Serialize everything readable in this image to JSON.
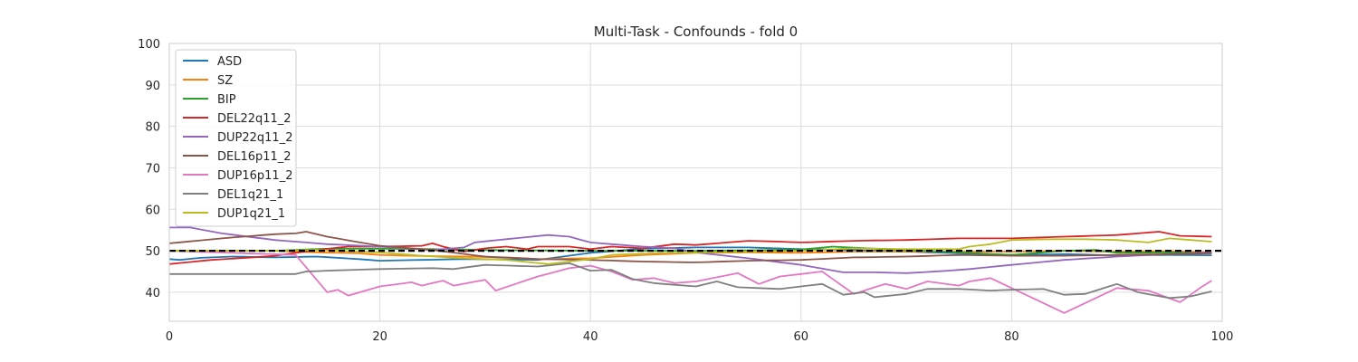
{
  "chart_data": {
    "type": "line",
    "title": "Multi-Task - Confounds - fold 0",
    "xlabel": "",
    "ylabel": "",
    "xlim": [
      0,
      100
    ],
    "ylim": [
      33,
      100
    ],
    "xticks": [
      0,
      20,
      40,
      60,
      80,
      100
    ],
    "yticks": [
      40,
      50,
      60,
      70,
      80,
      90,
      100
    ],
    "grid": true,
    "legend_position": "top-left",
    "reference_line": {
      "y": 50,
      "style": "dashed",
      "color": "#000000"
    },
    "x_step": 1,
    "series": [
      {
        "name": "ASD",
        "color": "#1f77b4",
        "keypoints": [
          [
            0,
            48
          ],
          [
            1,
            47.8
          ],
          [
            3,
            48.3
          ],
          [
            6,
            48.6
          ],
          [
            10,
            48.4
          ],
          [
            14,
            48.6
          ],
          [
            18,
            48
          ],
          [
            20,
            47.6
          ],
          [
            24,
            47.8
          ],
          [
            28,
            48
          ],
          [
            32,
            47.9
          ],
          [
            35,
            47.8
          ],
          [
            40,
            49.5
          ],
          [
            45,
            50.5
          ],
          [
            50,
            50.8
          ],
          [
            55,
            50.8
          ],
          [
            60,
            50.4
          ],
          [
            65,
            50.2
          ],
          [
            70,
            49.8
          ],
          [
            75,
            49.4
          ],
          [
            80,
            49
          ],
          [
            85,
            49.2
          ],
          [
            90,
            48.9
          ],
          [
            95,
            49
          ],
          [
            99,
            48.9
          ]
        ]
      },
      {
        "name": "SZ",
        "color": "#ff7f0e",
        "keypoints": [
          [
            0,
            50
          ],
          [
            10,
            50
          ],
          [
            14,
            49.6
          ],
          [
            18,
            49.4
          ],
          [
            20,
            49
          ],
          [
            23,
            48.8
          ],
          [
            28,
            48.6
          ],
          [
            32,
            48.4
          ],
          [
            35,
            48
          ],
          [
            40,
            48.2
          ],
          [
            45,
            49
          ],
          [
            50,
            49.5
          ],
          [
            55,
            49.6
          ],
          [
            60,
            49.5
          ],
          [
            65,
            49.8
          ],
          [
            70,
            49.8
          ],
          [
            75,
            49.8
          ],
          [
            80,
            49.8
          ],
          [
            85,
            50
          ],
          [
            90,
            49.8
          ],
          [
            95,
            49.9
          ],
          [
            99,
            49.6
          ]
        ]
      },
      {
        "name": "BIP",
        "color": "#2ca02c",
        "keypoints": [
          [
            0,
            50
          ],
          [
            10,
            50
          ],
          [
            15,
            50.5
          ],
          [
            20,
            50.5
          ],
          [
            25,
            50.4
          ],
          [
            30,
            50.2
          ],
          [
            35,
            50.1
          ],
          [
            40,
            50
          ],
          [
            45,
            50
          ],
          [
            50,
            50
          ],
          [
            55,
            50.1
          ],
          [
            60,
            50.3
          ],
          [
            63,
            51
          ],
          [
            67,
            50.5
          ],
          [
            70,
            50.2
          ],
          [
            75,
            49.6
          ],
          [
            80,
            49
          ],
          [
            85,
            50
          ],
          [
            88,
            50.2
          ],
          [
            90,
            49.5
          ],
          [
            95,
            49.6
          ],
          [
            99,
            49.4
          ]
        ]
      },
      {
        "name": "DEL22q11_2",
        "color": "#d62728",
        "keypoints": [
          [
            0,
            46.8
          ],
          [
            4,
            47.8
          ],
          [
            8,
            48.4
          ],
          [
            10,
            48.8
          ],
          [
            14,
            50.2
          ],
          [
            17,
            51
          ],
          [
            20,
            51
          ],
          [
            24,
            51.2
          ],
          [
            25,
            51.8
          ],
          [
            26,
            51
          ],
          [
            28,
            49.8
          ],
          [
            30,
            50.6
          ],
          [
            32,
            51
          ],
          [
            34,
            50.4
          ],
          [
            35,
            51
          ],
          [
            38,
            51
          ],
          [
            40,
            50.4
          ],
          [
            42,
            51
          ],
          [
            45,
            50.6
          ],
          [
            48,
            51.6
          ],
          [
            50,
            51.4
          ],
          [
            52,
            51.8
          ],
          [
            55,
            52.4
          ],
          [
            58,
            52.2
          ],
          [
            60,
            52
          ],
          [
            65,
            52.4
          ],
          [
            70,
            52.6
          ],
          [
            75,
            53
          ],
          [
            80,
            53
          ],
          [
            85,
            53.4
          ],
          [
            90,
            53.8
          ],
          [
            94,
            54.6
          ],
          [
            96,
            53.6
          ],
          [
            99,
            53.4
          ]
        ]
      },
      {
        "name": "DUP22q11_2",
        "color": "#9467bd",
        "keypoints": [
          [
            0,
            55.6
          ],
          [
            2,
            55.6
          ],
          [
            5,
            54.2
          ],
          [
            10,
            52.6
          ],
          [
            15,
            51.6
          ],
          [
            20,
            51
          ],
          [
            25,
            50.2
          ],
          [
            28,
            50.8
          ],
          [
            29,
            52
          ],
          [
            32,
            52.8
          ],
          [
            36,
            53.8
          ],
          [
            38,
            53.4
          ],
          [
            40,
            52
          ],
          [
            42,
            51.6
          ],
          [
            45,
            51
          ],
          [
            48,
            50.6
          ],
          [
            50,
            49.6
          ],
          [
            55,
            48.2
          ],
          [
            60,
            46.6
          ],
          [
            64,
            44.8
          ],
          [
            67,
            44.8
          ],
          [
            70,
            44.6
          ],
          [
            74,
            45.2
          ],
          [
            76,
            45.6
          ],
          [
            80,
            46.6
          ],
          [
            85,
            47.8
          ],
          [
            90,
            48.6
          ],
          [
            95,
            49.2
          ],
          [
            99,
            49.6
          ]
        ]
      },
      {
        "name": "DEL16p11_2",
        "color": "#8c564b",
        "keypoints": [
          [
            0,
            51.8
          ],
          [
            5,
            53
          ],
          [
            10,
            54
          ],
          [
            12,
            54.2
          ],
          [
            13,
            54.6
          ],
          [
            15,
            53.4
          ],
          [
            20,
            51.2
          ],
          [
            25,
            50.2
          ],
          [
            30,
            48.6
          ],
          [
            35,
            48
          ],
          [
            40,
            47.8
          ],
          [
            45,
            47.4
          ],
          [
            50,
            47.2
          ],
          [
            55,
            47.6
          ],
          [
            60,
            47.8
          ],
          [
            65,
            48.4
          ],
          [
            70,
            48.6
          ],
          [
            75,
            49
          ],
          [
            80,
            48.8
          ],
          [
            85,
            48.8
          ],
          [
            90,
            49
          ],
          [
            95,
            49.2
          ],
          [
            99,
            49.4
          ]
        ]
      },
      {
        "name": "DUP16p11_2",
        "color": "#e377c2",
        "keypoints": [
          [
            0,
            50
          ],
          [
            12,
            49
          ],
          [
            15,
            40
          ],
          [
            16,
            40.6
          ],
          [
            17,
            39.2
          ],
          [
            20,
            41.4
          ],
          [
            23,
            42.4
          ],
          [
            24,
            41.6
          ],
          [
            26,
            42.8
          ],
          [
            27,
            41.6
          ],
          [
            30,
            43
          ],
          [
            31,
            40.4
          ],
          [
            35,
            43.8
          ],
          [
            38,
            45.8
          ],
          [
            40,
            46.4
          ],
          [
            42,
            45
          ],
          [
            44,
            43
          ],
          [
            46,
            43.4
          ],
          [
            48,
            42.2
          ],
          [
            50,
            42.6
          ],
          [
            54,
            44.6
          ],
          [
            56,
            42
          ],
          [
            58,
            43.8
          ],
          [
            62,
            45
          ],
          [
            65,
            39.6
          ],
          [
            68,
            42
          ],
          [
            70,
            40.8
          ],
          [
            72,
            42.6
          ],
          [
            75,
            41.6
          ],
          [
            76,
            42.6
          ],
          [
            78,
            43.4
          ],
          [
            80,
            41
          ],
          [
            82,
            38.6
          ],
          [
            85,
            35
          ],
          [
            88,
            38.6
          ],
          [
            90,
            41
          ],
          [
            93,
            40.4
          ],
          [
            96,
            37.6
          ],
          [
            98,
            41.2
          ],
          [
            99,
            42.8
          ]
        ]
      },
      {
        "name": "DEL1q21_1",
        "color": "#7f7f7f",
        "keypoints": [
          [
            0,
            44.4
          ],
          [
            12,
            44.4
          ],
          [
            13,
            45
          ],
          [
            15,
            45.2
          ],
          [
            20,
            45.6
          ],
          [
            25,
            45.8
          ],
          [
            27,
            45.6
          ],
          [
            30,
            46.6
          ],
          [
            35,
            46.2
          ],
          [
            38,
            47
          ],
          [
            40,
            45.2
          ],
          [
            42,
            45.4
          ],
          [
            44,
            43.2
          ],
          [
            46,
            42.2
          ],
          [
            48,
            41.8
          ],
          [
            50,
            41.4
          ],
          [
            52,
            42.6
          ],
          [
            54,
            41.2
          ],
          [
            56,
            41
          ],
          [
            58,
            40.8
          ],
          [
            60,
            41.4
          ],
          [
            62,
            42
          ],
          [
            64,
            39.4
          ],
          [
            66,
            40
          ],
          [
            67,
            38.8
          ],
          [
            70,
            39.6
          ],
          [
            72,
            40.8
          ],
          [
            75,
            40.8
          ],
          [
            78,
            40.4
          ],
          [
            80,
            40.6
          ],
          [
            83,
            40.8
          ],
          [
            85,
            39.4
          ],
          [
            87,
            39.6
          ],
          [
            90,
            42
          ],
          [
            92,
            40
          ],
          [
            95,
            38.6
          ],
          [
            97,
            39
          ],
          [
            99,
            40.2
          ]
        ]
      },
      {
        "name": "DUP1q21_1",
        "color": "#bcbd22",
        "keypoints": [
          [
            0,
            50
          ],
          [
            10,
            50
          ],
          [
            14,
            50.2
          ],
          [
            20,
            49.6
          ],
          [
            24,
            48.8
          ],
          [
            28,
            48.2
          ],
          [
            32,
            47.8
          ],
          [
            36,
            46.8
          ],
          [
            40,
            48
          ],
          [
            42,
            49
          ],
          [
            46,
            49.4
          ],
          [
            50,
            49.6
          ],
          [
            55,
            49.8
          ],
          [
            60,
            50
          ],
          [
            65,
            50.6
          ],
          [
            70,
            50.4
          ],
          [
            75,
            50.4
          ],
          [
            76,
            51
          ],
          [
            78,
            51.6
          ],
          [
            80,
            52.6
          ],
          [
            84,
            52.8
          ],
          [
            87,
            52.8
          ],
          [
            90,
            52.6
          ],
          [
            93,
            52
          ],
          [
            95,
            53
          ],
          [
            99,
            52.2
          ]
        ]
      }
    ]
  }
}
